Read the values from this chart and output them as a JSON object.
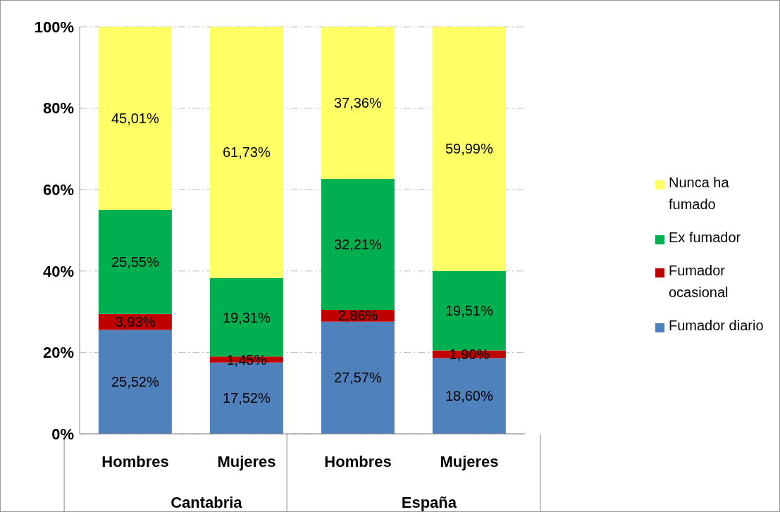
{
  "chart_data": {
    "type": "bar",
    "stacked": true,
    "categories": [
      "Hombres",
      "Mujeres",
      "Hombres",
      "Mujeres"
    ],
    "annotations": [
      "Cantabria",
      "España"
    ],
    "series": [
      {
        "name": "Fumador diario",
        "color": "#4f81bd",
        "values": [
          25.52,
          17.52,
          27.57,
          18.6
        ],
        "value_labels": [
          "25,52%",
          "17,52%",
          "27,57%",
          "18,60%"
        ]
      },
      {
        "name": "Fumador ocasional",
        "color": "#c00000",
        "values": [
          3.93,
          1.45,
          2.86,
          1.9
        ],
        "value_labels": [
          "3,93%",
          "1,45%",
          "2,86%",
          "1,90%"
        ]
      },
      {
        "name": "Ex fumador",
        "color": "#00b050",
        "values": [
          25.55,
          19.31,
          32.21,
          19.51
        ],
        "value_labels": [
          "25,55%",
          "19,31%",
          "32,21%",
          "19,51%"
        ]
      },
      {
        "name": "Nunca ha fumado",
        "color": "#ffff66",
        "values": [
          45.01,
          61.73,
          37.36,
          59.99
        ],
        "value_labels": [
          "45,01%",
          "61,73%",
          "37,36%",
          "59,99%"
        ]
      }
    ],
    "ylim": [
      0,
      100
    ],
    "yticks": [
      {
        "value": 0,
        "label": "0%"
      },
      {
        "value": 20,
        "label": "20%"
      },
      {
        "value": 40,
        "label": "40%"
      },
      {
        "value": 60,
        "label": "60%"
      },
      {
        "value": 80,
        "label": "80%"
      },
      {
        "value": 100,
        "label": "100%"
      }
    ],
    "grid": "y",
    "legend": "right"
  }
}
